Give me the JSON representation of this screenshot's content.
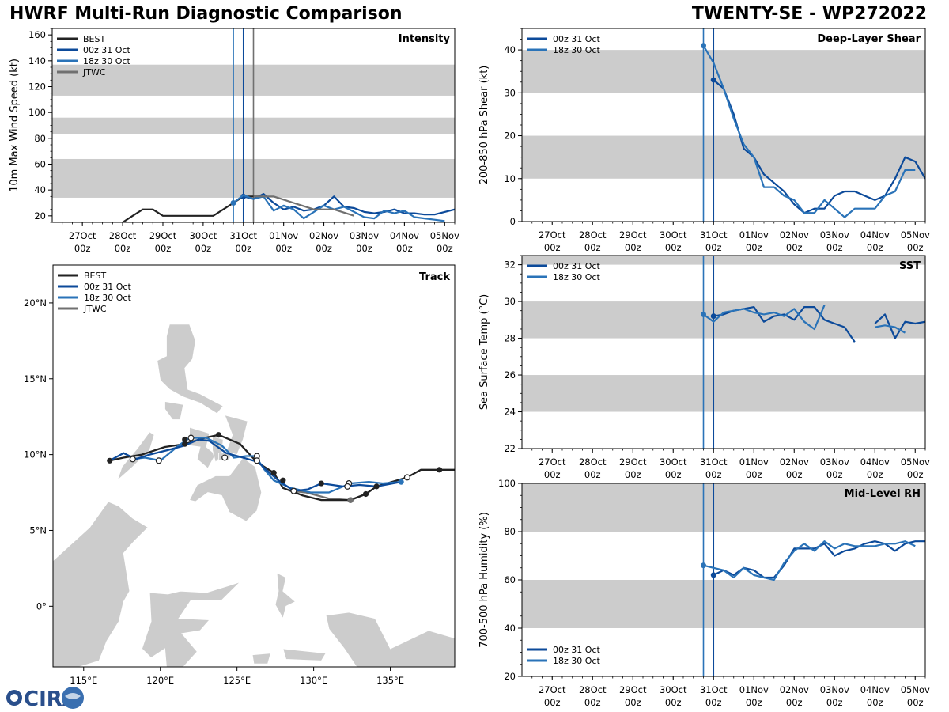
{
  "header": {
    "title_left": "HWRF Multi-Run Diagnostic Comparison",
    "title_right": "TWENTY-SE - WP272022"
  },
  "logo": {
    "text": "CIRA"
  },
  "colors": {
    "best": "#222222",
    "run00z": "#0c4a9a",
    "run18z": "#2a73b8",
    "jtwc": "#707070",
    "band": "#cccccc"
  },
  "time_axis": {
    "ticks": [
      0,
      24,
      48,
      72,
      96,
      120,
      144,
      168,
      192,
      216
    ],
    "labels": [
      "27Oct\n00z",
      "28Oct\n00z",
      "29Oct\n00z",
      "30Oct\n00z",
      "31Oct\n00z",
      "01Nov\n00z",
      "02Nov\n00z",
      "03Nov\n00z",
      "04Nov\n00z",
      "05Nov\n00z"
    ],
    "range": [
      -18,
      222
    ],
    "init_times": {
      "run00z": 96,
      "run18z": 90,
      "jtwc": 102
    }
  },
  "chart_data": [
    {
      "type": "line",
      "id": "intensity",
      "title": "Intensity",
      "ylabel": "10m Max Wind Speed (kt)",
      "ylim": [
        15,
        165
      ],
      "yticks": [
        20,
        40,
        60,
        80,
        100,
        120,
        140,
        160
      ],
      "bands": [
        [
          34,
          64
        ],
        [
          83,
          96
        ],
        [
          113,
          137
        ]
      ],
      "legend": [
        "BEST",
        "00z 31 Oct",
        "18z 30 Oct",
        "JTWC"
      ],
      "series": [
        {
          "name": "BEST",
          "key": "best",
          "x": [
            24,
            30,
            36,
            42,
            48,
            54,
            60,
            66,
            72,
            78,
            84,
            90,
            96,
            102,
            108
          ],
          "y": [
            15,
            20,
            25,
            25,
            20,
            20,
            20,
            20,
            20,
            20,
            25,
            30,
            35,
            35,
            35
          ]
        },
        {
          "name": "00z 31 Oct",
          "key": "run00z",
          "x": [
            96,
            102,
            108,
            114,
            120,
            126,
            132,
            138,
            144,
            150,
            156,
            162,
            168,
            174,
            180,
            186,
            192,
            198,
            204,
            210,
            216,
            222
          ],
          "y": [
            35,
            33,
            37,
            30,
            25,
            27,
            24,
            25,
            28,
            35,
            27,
            26,
            23,
            22,
            23,
            25,
            22,
            22,
            21,
            21,
            23,
            25
          ]
        },
        {
          "name": "18z 30 Oct",
          "key": "run18z",
          "x": [
            90,
            96,
            102,
            108,
            114,
            120,
            126,
            132,
            138,
            144,
            150,
            156,
            162,
            168,
            174,
            180,
            186,
            192,
            198,
            204,
            210,
            216
          ],
          "y": [
            30,
            36,
            33,
            35,
            24,
            28,
            25,
            18,
            23,
            28,
            25,
            27,
            23,
            19,
            18,
            24,
            22,
            24,
            19,
            18,
            17,
            16
          ]
        },
        {
          "name": "JTWC",
          "key": "jtwc",
          "x": [
            102,
            114,
            126,
            138,
            150,
            162
          ],
          "y": [
            35,
            35,
            30,
            25,
            25,
            20
          ]
        }
      ]
    },
    {
      "type": "line",
      "id": "shear",
      "title": "Deep-Layer Shear",
      "ylabel": "200-850 hPa Shear (kt)",
      "ylim": [
        0,
        45
      ],
      "yticks": [
        0,
        10,
        20,
        30,
        40
      ],
      "bands": [
        [
          10,
          20
        ],
        [
          30,
          40
        ]
      ],
      "legend": [
        "00z 31 Oct",
        "18z 30 Oct"
      ],
      "series": [
        {
          "name": "00z 31 Oct",
          "key": "run00z",
          "x": [
            96,
            102,
            108,
            114,
            120,
            126,
            132,
            138,
            144,
            150,
            156,
            162,
            168,
            174,
            180,
            186,
            192,
            198,
            204,
            210,
            216,
            222
          ],
          "y": [
            33,
            31,
            25,
            17,
            15,
            11,
            9,
            7,
            4,
            2,
            3,
            3,
            6,
            7,
            7,
            6,
            5,
            6,
            10,
            15,
            14,
            10
          ]
        },
        {
          "name": "18z 30 Oct",
          "key": "run18z",
          "x": [
            90,
            96,
            102,
            108,
            114,
            120,
            126,
            132,
            138,
            144,
            150,
            156,
            162,
            168,
            174,
            180,
            186,
            192,
            198,
            204,
            210,
            216
          ],
          "y": [
            41,
            37,
            31,
            24,
            18,
            15,
            8,
            8,
            6,
            5,
            2,
            2,
            5,
            3,
            1,
            3,
            3,
            3,
            6,
            7,
            12,
            12
          ]
        }
      ]
    },
    {
      "type": "line",
      "id": "sst",
      "title": "SST",
      "ylabel": "Sea Surface Temp (°C)",
      "ylim": [
        22,
        32.5
      ],
      "yticks": [
        22,
        24,
        26,
        28,
        30,
        32
      ],
      "bands": [
        [
          24,
          26
        ],
        [
          28,
          30
        ],
        [
          32,
          33
        ]
      ],
      "legend": [
        "00z 31 Oct",
        "18z 30 Oct"
      ],
      "series": [
        {
          "name": "00z 31 Oct",
          "key": "run00z",
          "x": [
            96,
            102,
            108,
            114,
            120,
            126,
            132,
            138,
            144,
            150,
            156,
            162,
            168,
            174,
            180,
            null,
            192,
            198,
            204,
            210,
            216,
            222
          ],
          "y": [
            29.2,
            29.3,
            29.5,
            29.6,
            29.7,
            28.9,
            29.2,
            29.3,
            29.0,
            29.7,
            29.7,
            29.0,
            28.8,
            28.6,
            27.8,
            null,
            28.8,
            29.3,
            28.0,
            28.9,
            28.8,
            28.9
          ]
        },
        {
          "name": "18z 30 Oct",
          "key": "run18z",
          "x": [
            90,
            96,
            102,
            108,
            114,
            120,
            126,
            132,
            138,
            144,
            150,
            156,
            162,
            168,
            null,
            192,
            198,
            204,
            210
          ],
          "y": [
            29.3,
            28.9,
            29.4,
            29.5,
            29.6,
            29.4,
            29.3,
            29.4,
            29.2,
            29.6,
            28.9,
            28.5,
            29.8,
            null,
            null,
            28.6,
            28.7,
            28.6,
            28.3
          ]
        }
      ]
    },
    {
      "type": "line",
      "id": "rh",
      "title": "Mid-Level RH",
      "ylabel": "700-500 hPa Humidity (%)",
      "ylim": [
        20,
        100
      ],
      "yticks": [
        20,
        40,
        60,
        80,
        100
      ],
      "bands": [
        [
          40,
          60
        ],
        [
          80,
          100
        ]
      ],
      "legend": [
        "00z 31 Oct",
        "18z 30 Oct"
      ],
      "series": [
        {
          "name": "00z 31 Oct",
          "key": "run00z",
          "x": [
            96,
            102,
            108,
            114,
            120,
            126,
            132,
            138,
            144,
            150,
            156,
            162,
            168,
            174,
            180,
            186,
            192,
            198,
            204,
            210,
            216,
            222
          ],
          "y": [
            62,
            64,
            62,
            65,
            64,
            61,
            61,
            66,
            73,
            73,
            73,
            75,
            70,
            72,
            73,
            75,
            76,
            75,
            72,
            75,
            76,
            76
          ]
        },
        {
          "name": "18z 30 Oct",
          "key": "run18z",
          "x": [
            90,
            96,
            102,
            108,
            114,
            120,
            126,
            132,
            138,
            144,
            150,
            156,
            162,
            168,
            174,
            180,
            186,
            192,
            198,
            204,
            210,
            216
          ],
          "y": [
            66,
            65,
            64,
            61,
            65,
            62,
            61,
            60,
            67,
            72,
            75,
            72,
            76,
            73,
            75,
            74,
            74,
            74,
            75,
            75,
            76,
            74
          ]
        }
      ]
    },
    {
      "type": "scatter",
      "id": "track",
      "title": "Track",
      "xlabels": [
        "115°E",
        "120°E",
        "125°E",
        "130°E",
        "135°E"
      ],
      "xticks": [
        115,
        120,
        125,
        130,
        135
      ],
      "ylabels": [
        "0°",
        "5°N",
        "10°N",
        "15°N",
        "20°N"
      ],
      "yticks": [
        0,
        5,
        10,
        15,
        20
      ],
      "xlim": [
        113,
        139.2
      ],
      "ylim": [
        -4,
        22.5
      ],
      "legend": [
        "BEST",
        "00z 31 Oct",
        "18z 30 Oct",
        "JTWC"
      ],
      "tracks": [
        {
          "name": "BEST",
          "key": "best",
          "lon": [
            139.2,
            138.2,
            137.0,
            136.1,
            134.1,
            133.4,
            132.4,
            131.0,
            130.5,
            129.3,
            128.0,
            127.4,
            126.3,
            125.2,
            123.8,
            122.9,
            121.6,
            120.3,
            118.8,
            117.6,
            116.7
          ],
          "lat": [
            9.0,
            9.0,
            9.0,
            8.5,
            7.9,
            7.4,
            7.0,
            7.0,
            7.0,
            7.3,
            7.8,
            8.8,
            9.5,
            10.7,
            11.3,
            11.1,
            10.7,
            10.5,
            10.0,
            9.8,
            9.6
          ]
        },
        {
          "name": "00z 31 Oct",
          "key": "run00z",
          "lon": [
            135.7,
            134.1,
            133.0,
            131.9,
            130.5,
            129.6,
            128.7,
            127.7,
            126.9,
            126.4,
            125.4,
            124.3,
            123.2,
            122.5,
            121.6,
            120.5,
            119.3,
            118.4,
            117.6,
            116.7
          ],
          "lat": [
            8.2,
            7.9,
            8.0,
            7.9,
            8.1,
            7.7,
            7.6,
            8.3,
            9.0,
            9.5,
            9.8,
            10.1,
            10.9,
            11.0,
            10.6,
            10.3,
            10.0,
            9.7,
            10.1,
            9.6
          ]
        },
        {
          "name": "18z 30 Oct",
          "key": "run18z",
          "lon": [
            135.7,
            134.5,
            133.6,
            132.4,
            131.0,
            129.8,
            128.5,
            127.4,
            126.8,
            126.2,
            125.6,
            124.8,
            124.0,
            123.0,
            121.9,
            121.2,
            120.0,
            119.0,
            118.1
          ],
          "lat": [
            8.2,
            8.1,
            8.2,
            8.1,
            7.5,
            7.5,
            7.8,
            8.3,
            9.0,
            9.9,
            9.9,
            9.8,
            10.6,
            11.1,
            11.1,
            10.6,
            9.6,
            9.8,
            9.7
          ]
        },
        {
          "name": "JTWC",
          "key": "jtwc",
          "lon": [
            133.4,
            132.4,
            131.0,
            129.5,
            128.5
          ],
          "lat": [
            7.4,
            7.0,
            7.1,
            7.5,
            7.6
          ]
        }
      ],
      "markers": {
        "best": [
          [
            138.2,
            9.0
          ],
          [
            136.1,
            8.5
          ],
          [
            134.1,
            7.9
          ],
          [
            133.4,
            7.4
          ],
          [
            132.4,
            7.0
          ],
          [
            130.5,
            8.1
          ],
          [
            128.0,
            8.3
          ],
          [
            127.4,
            8.8
          ],
          [
            126.3,
            9.7
          ],
          [
            123.8,
            11.3
          ],
          [
            121.6,
            11.0
          ],
          [
            121.6,
            10.7
          ],
          [
            116.7,
            9.6
          ]
        ],
        "open": [
          [
            136.1,
            8.5
          ],
          [
            132.3,
            8.1
          ],
          [
            132.2,
            7.9
          ],
          [
            128.7,
            7.6
          ],
          [
            126.3,
            9.9
          ],
          [
            126.3,
            9.6
          ],
          [
            124.2,
            9.8
          ],
          [
            122.0,
            11.1
          ],
          [
            119.9,
            9.6
          ],
          [
            118.2,
            9.7
          ]
        ],
        "start18z": [
          [
            135.7,
            8.2
          ]
        ]
      }
    }
  ]
}
